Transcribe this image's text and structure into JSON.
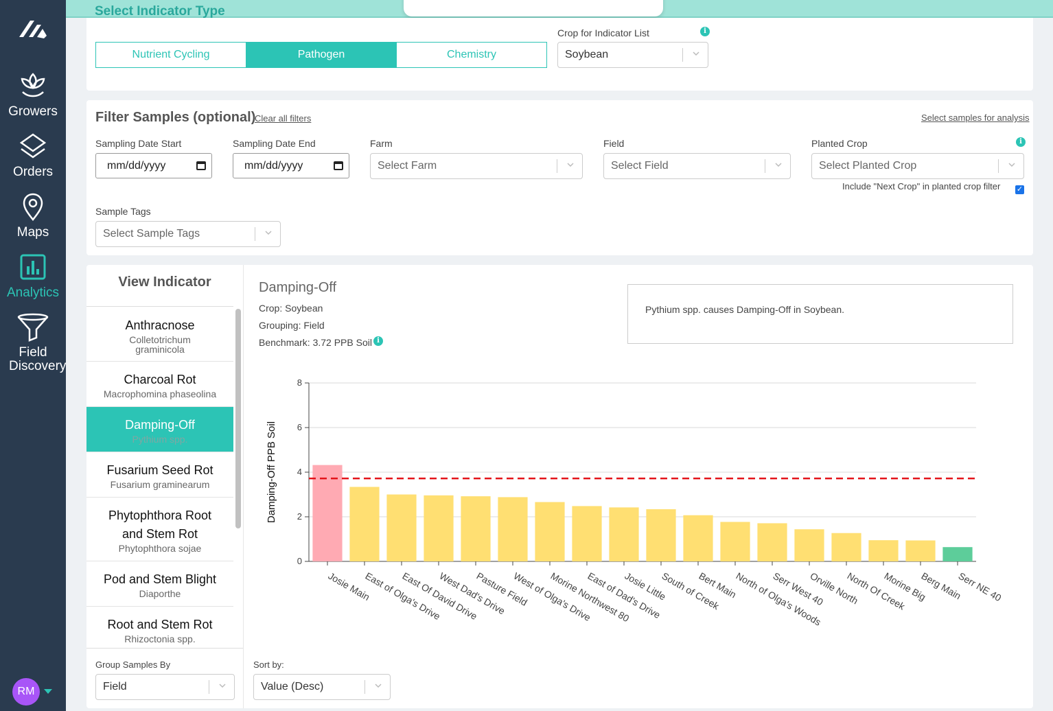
{
  "sidebar": {
    "items": [
      {
        "label": "Growers",
        "icon": "growers-icon"
      },
      {
        "label": "Orders",
        "icon": "layers-icon"
      },
      {
        "label": "Maps",
        "icon": "map-pin-icon"
      },
      {
        "label": "Analytics",
        "icon": "bar-chart-icon"
      },
      {
        "label": "Field Discovery",
        "icon": "funnel-icon"
      }
    ],
    "active": "Analytics",
    "avatar": "RM"
  },
  "indicator_type": {
    "title": "Select Indicator Type",
    "tabs": [
      "Nutrient Cycling",
      "Pathogen",
      "Chemistry"
    ],
    "active": "Pathogen",
    "crop_label": "Crop for Indicator List",
    "crop_value": "Soybean"
  },
  "filters": {
    "title": "Filter Samples (optional)",
    "clear": "Clear all filters",
    "select_samples": "Select samples for analysis",
    "date_start_label": "Sampling Date Start",
    "date_start_value": "mm/dd/yyyy",
    "date_end_label": "Sampling Date End",
    "date_end_value": "mm/dd/yyyy",
    "farm_label": "Farm",
    "farm_placeholder": "Select Farm",
    "field_label": "Field",
    "field_placeholder": "Select Field",
    "planted_crop_label": "Planted Crop",
    "planted_crop_placeholder": "Select Planted Crop",
    "next_crop_text": "Include \"Next Crop\" in planted crop filter",
    "tags_label": "Sample Tags",
    "tags_placeholder": "Select Sample Tags"
  },
  "view_indicator": {
    "title": "View Indicator",
    "items": [
      {
        "name": "Anthracnose",
        "sci": "Colletotrichum graminicola"
      },
      {
        "name": "Charcoal Rot",
        "sci": "Macrophomina phaseolina"
      },
      {
        "name": "Damping-Off",
        "sci": "Pythium spp."
      },
      {
        "name": "Fusarium Seed Rot",
        "sci": "Fusarium graminearum"
      },
      {
        "name": "Phytophthora Root and Stem Rot",
        "sci": "Phytophthora sojae"
      },
      {
        "name": "Pod and Stem Blight",
        "sci": "Diaporthe"
      },
      {
        "name": "Root and Stem Rot",
        "sci": "Rhizoctonia spp."
      }
    ],
    "active": "Damping-Off",
    "group_label": "Group Samples By",
    "group_value": "Field",
    "sort_label": "Sort by:",
    "sort_value": "Value (Desc)"
  },
  "detail": {
    "title": "Damping-Off",
    "crop": "Crop: Soybean",
    "grouping": "Grouping: Field",
    "benchmark": "Benchmark: 3.72 PPB Soil",
    "description": "Pythium spp. causes Damping-Off in Soybean."
  },
  "chart_data": {
    "type": "bar",
    "ylabel": "Damping-Off PPB Soil",
    "xlabel": "",
    "ylim": [
      0,
      8
    ],
    "yticks": [
      0,
      2,
      4,
      6,
      8
    ],
    "benchmark": 3.72,
    "categories": [
      "Josie Main",
      "East of Olga's Drive",
      "East Of David Drive",
      "West Dad's Drive",
      "Pasture Field",
      "West of Olga's Drive",
      "Morine Northwest 80",
      "East of Dad's Drive",
      "Josie Little",
      "South of Creek",
      "Bert Main",
      "North of Olga's Woods",
      "Serr West 40",
      "Orville North",
      "North Of Creek",
      "Morine Big",
      "Berg Main",
      "Serr NE 40"
    ],
    "values": [
      4.32,
      3.34,
      3.0,
      2.96,
      2.92,
      2.88,
      2.66,
      2.48,
      2.42,
      2.34,
      2.07,
      1.77,
      1.71,
      1.44,
      1.27,
      0.95,
      0.94,
      0.64
    ],
    "bar_colors": [
      "#ffaab3",
      "#ffdf72",
      "#ffdf72",
      "#ffdf72",
      "#ffdf72",
      "#ffdf72",
      "#ffdf72",
      "#ffdf72",
      "#ffdf72",
      "#ffdf72",
      "#ffdf72",
      "#ffdf72",
      "#ffdf72",
      "#ffdf72",
      "#ffdf72",
      "#ffdf72",
      "#ffdf72",
      "#5dcd9a"
    ],
    "benchmark_color": "#e3141a"
  },
  "colors": {
    "accent": "#2cc4b5",
    "sidebar": "#2a3b4f"
  }
}
